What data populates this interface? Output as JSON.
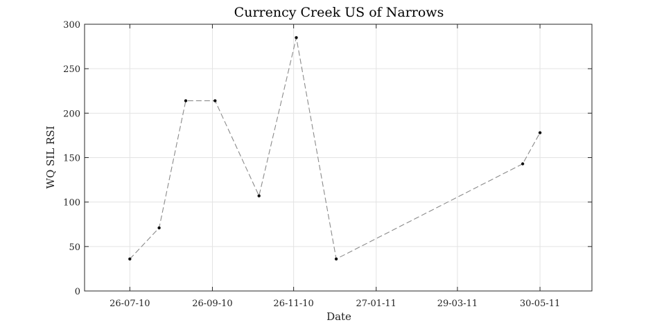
{
  "chart_data": {
    "type": "line",
    "title": "Currency Creek US of Narrows",
    "xlabel": "Date",
    "ylabel": "WQ SIL RSI",
    "x_ticks": [
      "26-07-10",
      "26-09-10",
      "26-11-10",
      "27-01-11",
      "29-03-11",
      "30-05-11"
    ],
    "x_tick_dates": [
      "2010-07-26",
      "2010-09-26",
      "2010-11-26",
      "2011-01-27",
      "2011-03-29",
      "2011-05-30"
    ],
    "xlim": [
      "2010-06-22",
      "2011-07-08"
    ],
    "ylim": [
      0,
      300
    ],
    "y_ticks": [
      0,
      50,
      100,
      150,
      200,
      250,
      300
    ],
    "grid": true,
    "series": [
      {
        "x": [
          "2010-07-26",
          "2010-08-17",
          "2010-09-06",
          "2010-09-28",
          "2010-10-31",
          "2010-11-28",
          "2010-12-28",
          "2011-05-17",
          "2011-05-30"
        ],
        "y": [
          36,
          71,
          214,
          214,
          107,
          285,
          36,
          143,
          178
        ],
        "color": "#8a8a8a",
        "linestyle": "dashed"
      }
    ]
  }
}
